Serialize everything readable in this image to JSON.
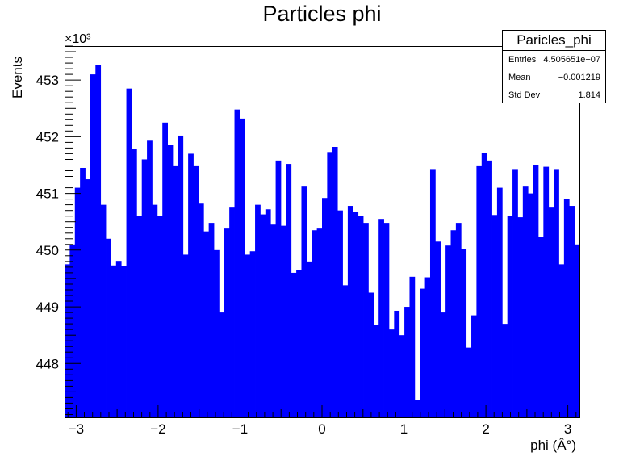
{
  "title": "Particles phi",
  "stats": {
    "name": "Paricles_phi",
    "rows": [
      {
        "label": "Entries",
        "value": "4.505651e+07"
      },
      {
        "label": "Mean",
        "value": "−0.001219"
      },
      {
        "label": "Std Dev",
        "value": "1.814"
      }
    ]
  },
  "chart_data": {
    "type": "bar",
    "title": "Particles phi",
    "xlabel": "phi (Â°)",
    "ylabel": "Events",
    "y_exponent_label": "×10³",
    "xlim": [
      -3.14159,
      3.14159
    ],
    "ylim": [
      447.05,
      453.6
    ],
    "x_ticks": [
      -3,
      -2,
      -1,
      0,
      1,
      2,
      3
    ],
    "y_ticks": [
      448,
      449,
      450,
      451,
      452,
      453
    ],
    "fill_color": "#0000ff",
    "grid": false,
    "legend": "none",
    "values": [
      449.75,
      450.1,
      451.1,
      451.45,
      451.25,
      453.1,
      453.27,
      450.8,
      450.2,
      449.73,
      449.81,
      449.72,
      452.85,
      451.78,
      450.6,
      451.6,
      451.93,
      450.8,
      450.6,
      452.25,
      451.85,
      451.48,
      452.02,
      449.92,
      451.7,
      451.48,
      450.82,
      450.33,
      450.48,
      450.0,
      448.9,
      450.38,
      450.75,
      452.48,
      452.32,
      449.92,
      449.98,
      450.8,
      450.63,
      450.72,
      450.45,
      451.58,
      450.43,
      451.52,
      449.6,
      449.65,
      451.12,
      449.8,
      450.35,
      450.38,
      450.92,
      451.73,
      451.82,
      450.7,
      449.38,
      450.78,
      450.68,
      450.6,
      450.48,
      449.25,
      448.68,
      450.55,
      450.48,
      448.6,
      448.93,
      448.5,
      449.0,
      449.53,
      447.35,
      449.32,
      449.52,
      451.43,
      450.15,
      448.9,
      450.08,
      450.35,
      450.48,
      450.02,
      448.28,
      448.85,
      451.48,
      451.72,
      451.58,
      450.62,
      451.1,
      448.7,
      450.6,
      451.43,
      450.58,
      451.12,
      451.0,
      451.5,
      450.23,
      451.47,
      450.75,
      451.43,
      449.75,
      450.9,
      450.78,
      450.1
    ]
  }
}
